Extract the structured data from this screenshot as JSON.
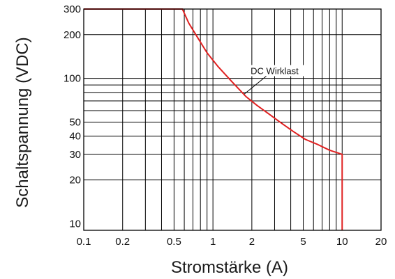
{
  "chart_data": {
    "type": "line",
    "xlabel": "Stromstärke (A)",
    "ylabel": "Schaltspannung (VDC)",
    "x_scale": "log",
    "y_scale": "log",
    "xlim": [
      0.1,
      20
    ],
    "ylim": [
      9,
      300
    ],
    "x_ticks": [
      0.1,
      0.2,
      0.5,
      1,
      2,
      5,
      10,
      20
    ],
    "x_tick_labels": [
      "0.1",
      "0.2",
      "0.5",
      "1",
      "2",
      "5",
      "10",
      "20"
    ],
    "y_ticks": [
      10,
      20,
      30,
      40,
      50,
      100,
      200,
      300
    ],
    "y_tick_labels": [
      "10",
      "20",
      "30",
      "40",
      "50",
      "100",
      "200",
      "300"
    ],
    "x_grid": [
      0.2,
      0.3,
      0.4,
      0.5,
      0.6,
      0.7,
      0.8,
      0.9,
      1,
      2,
      3,
      4,
      5,
      6,
      7,
      8,
      9,
      10
    ],
    "y_grid": [
      20,
      30,
      40,
      50,
      60,
      70,
      80,
      90,
      100,
      200
    ],
    "grid": true,
    "series": [
      {
        "name": "DC Wirklast",
        "color": "#e02020",
        "x": [
          0.1,
          0.58,
          0.65,
          0.75,
          0.9,
          1.1,
          1.4,
          1.8,
          2.2,
          2.7,
          3.3,
          4.2,
          5.2,
          6.5,
          8,
          10,
          10,
          10
        ],
        "y": [
          300,
          300,
          240,
          195,
          150,
          120,
          95,
          75,
          65,
          57,
          50,
          43,
          38,
          35,
          32,
          30,
          15,
          9
        ]
      }
    ],
    "annotations": [
      {
        "text": "DC Wirklast",
        "x": 3.0,
        "y": 107,
        "arrow_to_x": 1.75,
        "arrow_to_y": 78
      }
    ]
  }
}
